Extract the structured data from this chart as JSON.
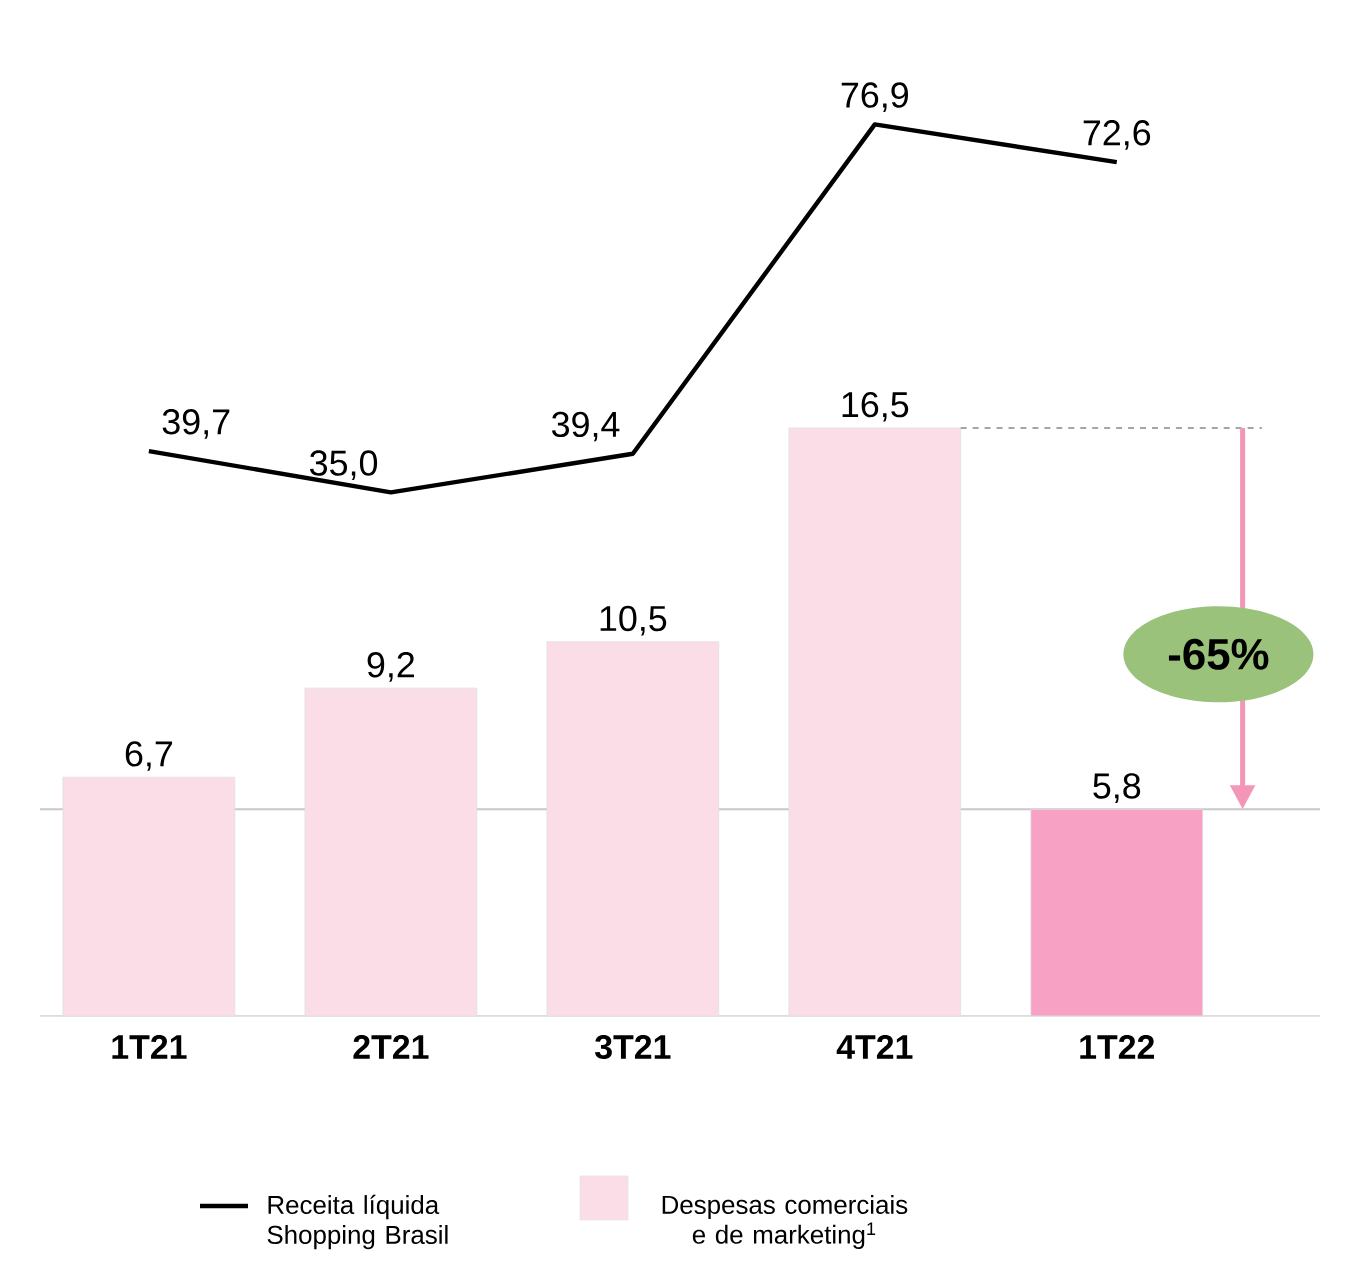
{
  "chart_data": {
    "type": "bar",
    "categories": [
      "1T21",
      "2T21",
      "3T21",
      "4T21",
      "1T22"
    ],
    "series": [
      {
        "name": "Receita líquida Shopping Brasil",
        "type": "line",
        "axis": "y2",
        "color": "#000000",
        "values": [
          39.7,
          35.0,
          39.4,
          76.9,
          72.6
        ],
        "value_labels": [
          "39,7",
          "35,0",
          "39,4",
          "76,9",
          "72,6"
        ]
      },
      {
        "name": "Despesas comerciais e de marketing$^{1}$",
        "color": "#fbdde8",
        "colors": [
          "#fbdde8",
          "#fbdde8",
          "#fbdde8",
          "#fbdde8",
          "#f7a1c4"
        ],
        "values": [
          6.7,
          9.2,
          10.5,
          16.5,
          5.8
        ],
        "value_labels": [
          "6,7",
          "9,2",
          "10,5",
          "16,5",
          "5,8"
        ]
      }
    ],
    "tick_labels": "x",
    "legend": "bottom",
    "marker": "none",
    "ref_lines": [
      {
        "axis": "y",
        "value": 5.8,
        "color": "#c8c8c8"
      }
    ],
    "annotations": [
      "-65%"
    ]
  }
}
